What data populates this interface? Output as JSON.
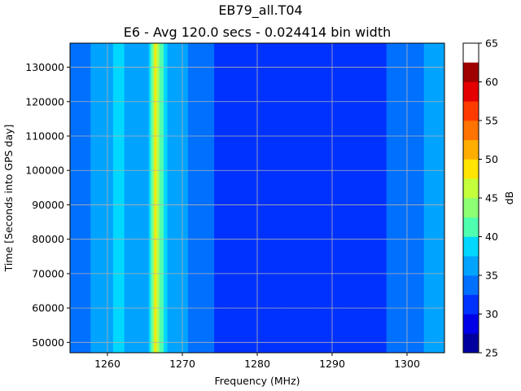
{
  "chart_data": {
    "type": "heatmap",
    "title": "EB79_all.T04",
    "subtitle": "E6 - Avg 120.0 secs - 0.024414 bin width",
    "xlabel": "Frequency (MHz)",
    "ylabel": "Time [Seconds into GPS day]",
    "colorbar_label": "dB",
    "xlim": [
      1255,
      1305
    ],
    "ylim": [
      47000,
      137000
    ],
    "x_ticks": [
      1260,
      1270,
      1280,
      1290,
      1300
    ],
    "y_ticks": [
      50000,
      60000,
      70000,
      80000,
      90000,
      100000,
      110000,
      120000,
      130000
    ],
    "colorbar_levels": [
      25,
      27.5,
      30,
      32.5,
      35,
      37.5,
      40,
      42.5,
      45,
      47.5,
      50,
      52.5,
      55,
      57.5,
      60,
      62.5,
      65
    ],
    "colorbar_ticks": [
      25,
      30,
      35,
      40,
      45,
      50,
      55,
      60,
      65
    ],
    "colorbar_colors": [
      "#00009f",
      "#0000e8",
      "#0032ff",
      "#0070ff",
      "#00a4ff",
      "#00d8ff",
      "#4fffb0",
      "#8cff73",
      "#c4ff3b",
      "#ffe500",
      "#ffae00",
      "#ff7300",
      "#ff3b00",
      "#e40000",
      "#9f0000"
    ],
    "grid": true,
    "frequency_profile_db": [
      {
        "freq": 1255.0,
        "db": 33
      },
      {
        "freq": 1257.5,
        "db": 33
      },
      {
        "freq": 1258.0,
        "db": 36
      },
      {
        "freq": 1260.0,
        "db": 36.5
      },
      {
        "freq": 1261.5,
        "db": 38.5
      },
      {
        "freq": 1263.0,
        "db": 36.5
      },
      {
        "freq": 1265.5,
        "db": 36.5
      },
      {
        "freq": 1266.0,
        "db": 43
      },
      {
        "freq": 1266.4,
        "db": 48
      },
      {
        "freq": 1267.0,
        "db": 43
      },
      {
        "freq": 1268.0,
        "db": 37
      },
      {
        "freq": 1270.5,
        "db": 36
      },
      {
        "freq": 1271.0,
        "db": 33
      },
      {
        "freq": 1283.5,
        "db": 31
      },
      {
        "freq": 1302.0,
        "db": 33
      },
      {
        "freq": 1302.5,
        "db": 36
      },
      {
        "freq": 1305.0,
        "db": 36
      }
    ]
  }
}
